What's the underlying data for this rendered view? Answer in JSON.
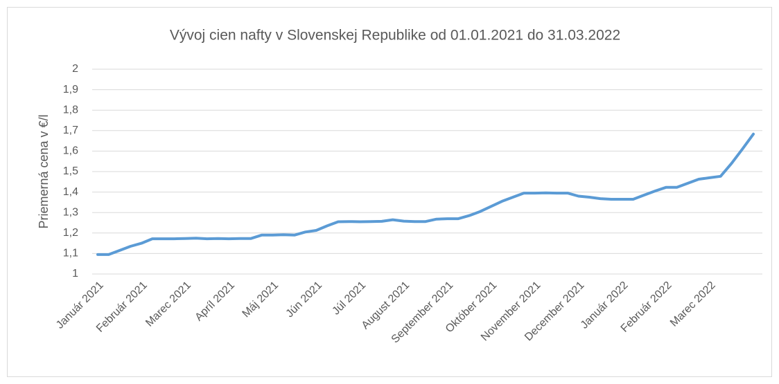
{
  "chart_data": {
    "type": "line",
    "title": "Vývoj cien nafty v Slovenskej Republike od 01.01.2021 do 31.03.2022",
    "y_label": "Priemerná cena  v €/l",
    "categories": [
      "Január 2021",
      null,
      null,
      null,
      "Február 2021",
      null,
      null,
      null,
      "Marec 2021",
      null,
      null,
      null,
      "Apríl 2021",
      null,
      null,
      null,
      "Máj 2021",
      null,
      null,
      null,
      "Jún 2021",
      null,
      null,
      null,
      "Júl 2021",
      null,
      null,
      null,
      "August 2021",
      null,
      null,
      null,
      "September 2021",
      null,
      null,
      null,
      "Október 2021",
      null,
      null,
      null,
      "November 2021",
      null,
      null,
      null,
      "December 2021",
      null,
      null,
      null,
      "Január 2022",
      null,
      null,
      null,
      "Február 2022",
      null,
      null,
      null,
      "Marec 2022",
      null,
      null,
      null,
      null
    ],
    "series": [
      {
        "name": "Priemerná cena",
        "color": "#5b9bd5",
        "values": [
          1.095,
          1.095,
          1.115,
          1.135,
          1.15,
          1.172,
          1.172,
          1.172,
          1.173,
          1.175,
          1.172,
          1.173,
          1.172,
          1.173,
          1.173,
          1.19,
          1.19,
          1.192,
          1.19,
          1.205,
          1.213,
          1.235,
          1.255,
          1.256,
          1.255,
          1.256,
          1.257,
          1.265,
          1.258,
          1.256,
          1.256,
          1.268,
          1.27,
          1.27,
          1.285,
          1.305,
          1.33,
          1.355,
          1.375,
          1.395,
          1.395,
          1.396,
          1.395,
          1.395,
          1.38,
          1.375,
          1.368,
          1.365,
          1.365,
          1.365,
          1.385,
          1.405,
          1.423,
          1.423,
          1.443,
          1.463,
          1.47,
          1.477,
          1.54,
          1.61,
          1.683
        ]
      }
    ],
    "ylim": [
      1,
      2
    ],
    "yticks": [
      1,
      {
        "value": 1.1,
        "label": "1,1"
      },
      {
        "value": 1.2,
        "label": "1,2"
      },
      {
        "value": 1.3,
        "label": "1,3"
      },
      {
        "value": 1.4,
        "label": "1,4"
      },
      {
        "value": 1.5,
        "label": "1,5"
      },
      {
        "value": 1.6,
        "label": "1,6"
      },
      {
        "value": 1.7,
        "label": "1,7"
      },
      {
        "value": 1.8,
        "label": "1,8"
      },
      {
        "value": 1.9,
        "label": "1,9"
      },
      2
    ],
    "grid": true
  }
}
